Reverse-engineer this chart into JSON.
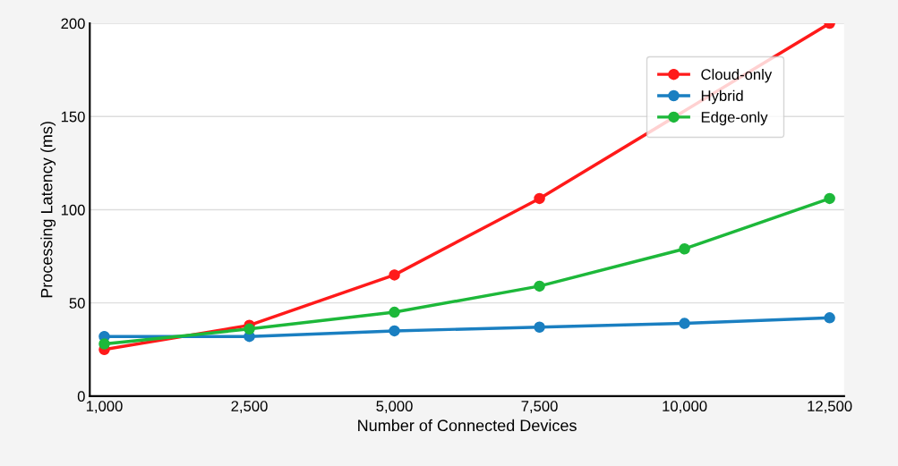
{
  "chart_data": {
    "type": "line",
    "xlabel": "Number of Connected Devices",
    "ylabel": "Processing Latency (ms)",
    "categories": [
      "1,000",
      "2,500",
      "5,000",
      "7,500",
      "10,000",
      "12,500"
    ],
    "series": [
      {
        "name": "Cloud-only",
        "color": "#ff1a1a",
        "values": [
          25,
          38,
          65,
          106,
          null,
          200
        ]
      },
      {
        "name": "Hybrid",
        "color": "#1a7fc1",
        "values": [
          32,
          32,
          35,
          37,
          39,
          42
        ]
      },
      {
        "name": "Edge-only",
        "color": "#1db83a",
        "values": [
          28,
          36,
          45,
          59,
          79,
          106
        ]
      }
    ],
    "ylim": [
      0,
      200
    ],
    "yticks": [
      0,
      50,
      100,
      150,
      200
    ],
    "grid": "y",
    "legend": "top right",
    "marker": "circle",
    "line_style": "solid"
  }
}
